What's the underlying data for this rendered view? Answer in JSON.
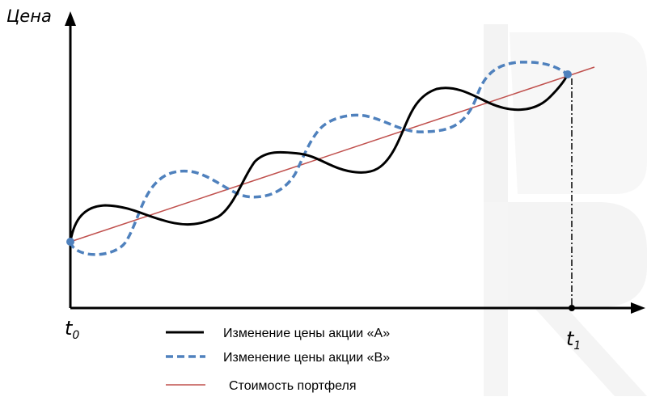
{
  "figure": {
    "y_axis_label": "Цена",
    "t0_label": "t",
    "t0_sub": "0",
    "t1_label": "t",
    "t1_sub": "1",
    "colors": {
      "axis": "#000000",
      "stock_a": "#000000",
      "stock_b": "#4f81bd",
      "portfolio": "#c0504d",
      "endpoint": "#4f81bd",
      "watermark": "#f2f2f2"
    }
  },
  "legend": [
    {
      "label": "Изменение цены акции «А»",
      "style": "solid-black"
    },
    {
      "label": "Изменение цены акции «B»",
      "style": "dashed-blue"
    },
    {
      "label": "Стоимость портфеля",
      "style": "thin-red"
    }
  ]
}
